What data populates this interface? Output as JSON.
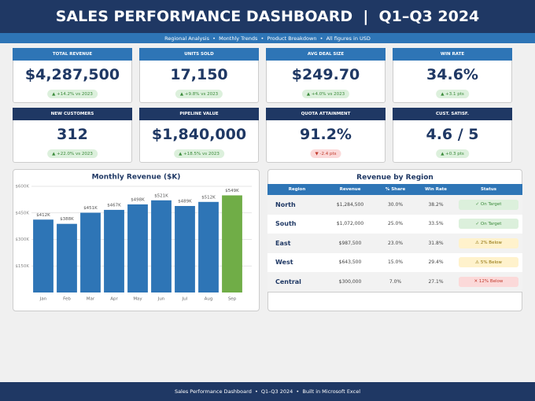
{
  "header": {
    "title": "SALES PERFORMANCE DASHBOARD  |  Q1–Q3 2024",
    "subtitle": "Regional Analysis  •  Monthly Trends  •  Product Breakdown  •  All figures in USD"
  },
  "kpis": [
    {
      "label": "TOTAL REVENUE",
      "value": "$4,287,500",
      "change": "▲ +14.2% vs 2023",
      "header_color": "#2e75b6",
      "badge_bg": "#dcf0dc",
      "badge_fg": "#3a8a3a"
    },
    {
      "label": "UNITS SOLD",
      "value": "17,150",
      "change": "▲ +9.8% vs 2023",
      "header_color": "#2e75b6",
      "badge_bg": "#dcf0dc",
      "badge_fg": "#3a8a3a"
    },
    {
      "label": "AVG DEAL SIZE",
      "value": "$249.70",
      "change": "▲ +4.0% vs 2023",
      "header_color": "#2e75b6",
      "badge_bg": "#dcf0dc",
      "badge_fg": "#3a8a3a"
    },
    {
      "label": "WIN RATE",
      "value": "34.6%",
      "change": "▲ +3.1 pts",
      "header_color": "#2e75b6",
      "badge_bg": "#dcf0dc",
      "badge_fg": "#3a8a3a"
    },
    {
      "label": "NEW CUSTOMERS",
      "value": "312",
      "change": "▲ +22.0% vs 2023",
      "header_color": "#1f3864",
      "badge_bg": "#dcf0dc",
      "badge_fg": "#3a8a3a"
    },
    {
      "label": "PIPELINE VALUE",
      "value": "$1,840,000",
      "change": "▲ +18.5% vs 2023",
      "header_color": "#1f3864",
      "badge_bg": "#dcf0dc",
      "badge_fg": "#3a8a3a"
    },
    {
      "label": "QUOTA ATTAINMENT",
      "value": "91.2%",
      "change": "▼ -2.4 pts",
      "header_color": "#1f3864",
      "badge_bg": "#fbd9d9",
      "badge_fg": "#c0392b"
    },
    {
      "label": "CUST. SATISF.",
      "value": "4.6 / 5",
      "change": "▲ +0.3 pts",
      "header_color": "#1f3864",
      "badge_bg": "#dcf0dc",
      "badge_fg": "#3a8a3a"
    }
  ],
  "chart_data": {
    "type": "bar",
    "title": "Monthly Revenue ($K)",
    "categories": [
      "Jan",
      "Feb",
      "Mar",
      "Apr",
      "May",
      "Jun",
      "Jul",
      "Aug",
      "Sep"
    ],
    "values": [
      412,
      388,
      451,
      467,
      498,
      521,
      489,
      512,
      549
    ],
    "value_labels": [
      "$412K",
      "$388K",
      "$451K",
      "$467K",
      "$498K",
      "$521K",
      "$489K",
      "$512K",
      "$549K"
    ],
    "colors": [
      "#2e75b6",
      "#2e75b6",
      "#2e75b6",
      "#2e75b6",
      "#2e75b6",
      "#2e75b6",
      "#2e75b6",
      "#2e75b6",
      "#70ad47"
    ],
    "ylim": [
      0,
      600
    ],
    "yticks": [
      {
        "value": 150,
        "label": "$150K"
      },
      {
        "value": 300,
        "label": "$300K"
      },
      {
        "value": 450,
        "label": "$450K"
      },
      {
        "value": 600,
        "label": "$600K"
      }
    ],
    "grid": true
  },
  "table": {
    "title": "Revenue by Region",
    "columns": [
      "Region",
      "Revenue",
      "% Share",
      "Win Rate",
      "Status"
    ],
    "rows": [
      [
        "North",
        "$1,284,500",
        "30.0%",
        "38.2%",
        "✓ On Target"
      ],
      [
        "South",
        "$1,072,000",
        "25.0%",
        "33.5%",
        "✓ On Target"
      ],
      [
        "East",
        "$987,500",
        "23.0%",
        "31.8%",
        "⚠ 2% Below"
      ],
      [
        "West",
        "$643,500",
        "15.0%",
        "29.4%",
        "⚠ 5% Below"
      ],
      [
        "Central",
        "$300,000",
        "7.0%",
        "27.1%",
        "✕ 12% Below"
      ]
    ],
    "status_bg": [
      "#dcf0dc",
      "#dcf0dc",
      "#fff2cc",
      "#fff2cc",
      "#fbd9d9"
    ],
    "status_fg": [
      "#3a8a3a",
      "#3a8a3a",
      "#8a6d00",
      "#8a6d00",
      "#c0392b"
    ]
  },
  "footer": "Sales Performance Dashboard  •  Q1–Q3 2024  •  Built in Microsoft Excel"
}
